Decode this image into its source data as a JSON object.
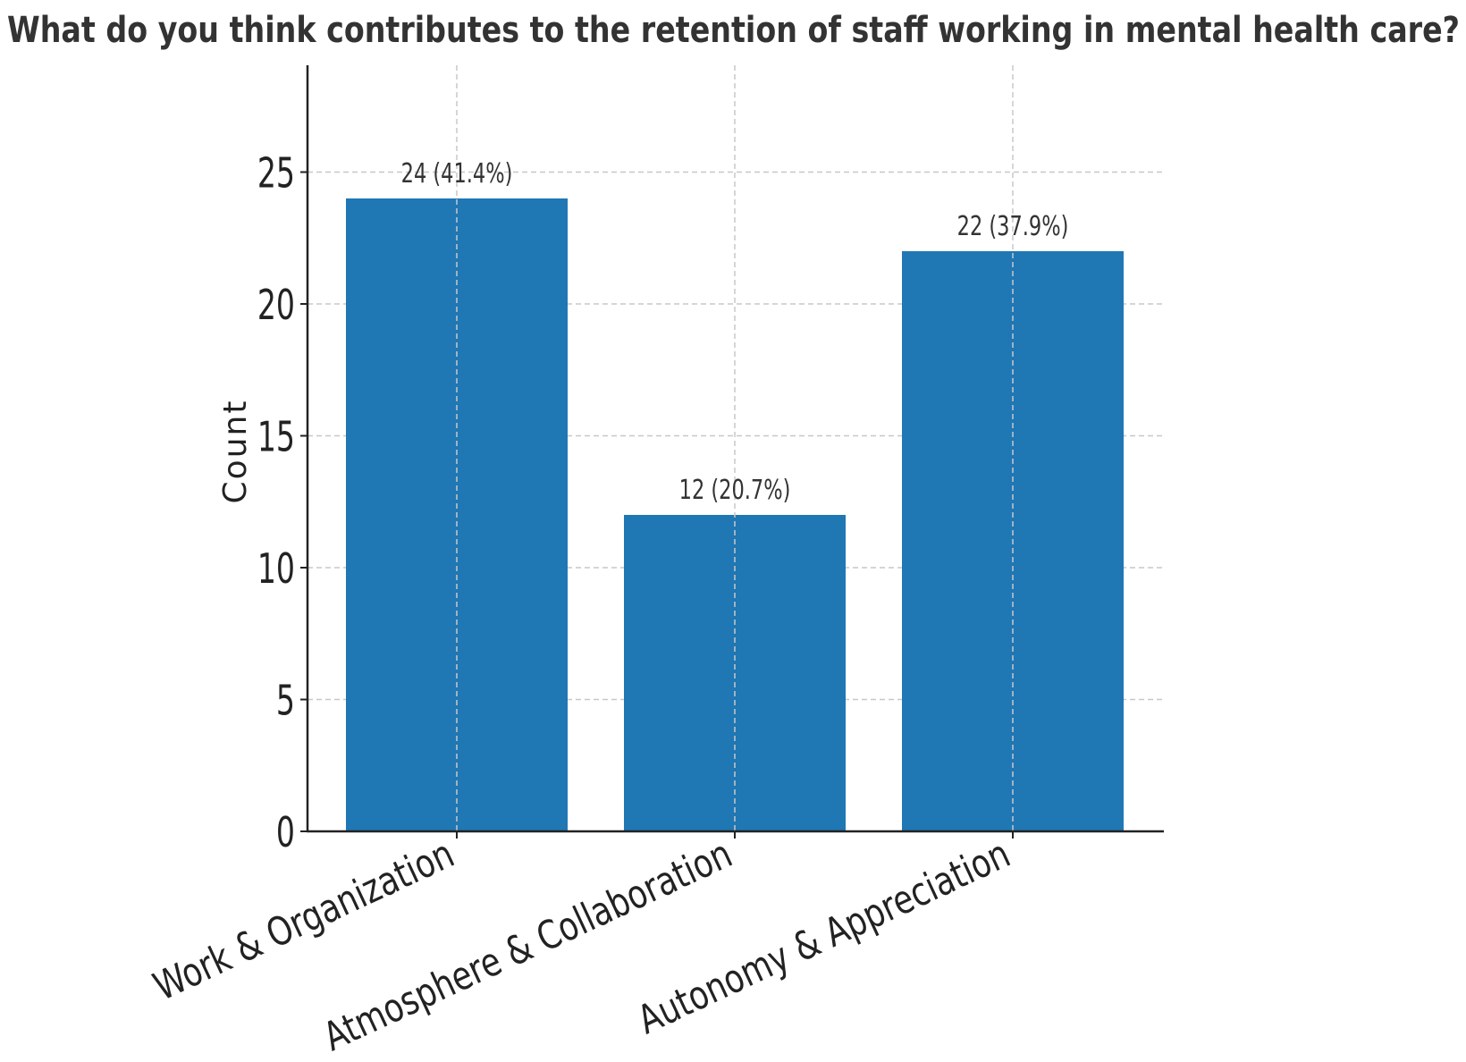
{
  "chart_data": {
    "type": "bar",
    "title": "What do you think contributes to the retention of staff working in mental health care?",
    "xlabel": "",
    "ylabel": "Count",
    "categories": [
      "Work & Organization",
      "Atmosphere & Collaboration",
      "Autonomy & Appreciation"
    ],
    "values": [
      24,
      12,
      22
    ],
    "data_labels": [
      "24 (41.4%)",
      "12 (20.7%)",
      "22 (37.9%)"
    ],
    "ylim": [
      0,
      29
    ],
    "yticks": [
      0,
      5,
      10,
      15,
      20,
      25
    ],
    "ytick_labels": [
      "0",
      "5",
      "10",
      "15",
      "20",
      "25"
    ],
    "grid": true,
    "bar_color": "#1f77b4"
  }
}
